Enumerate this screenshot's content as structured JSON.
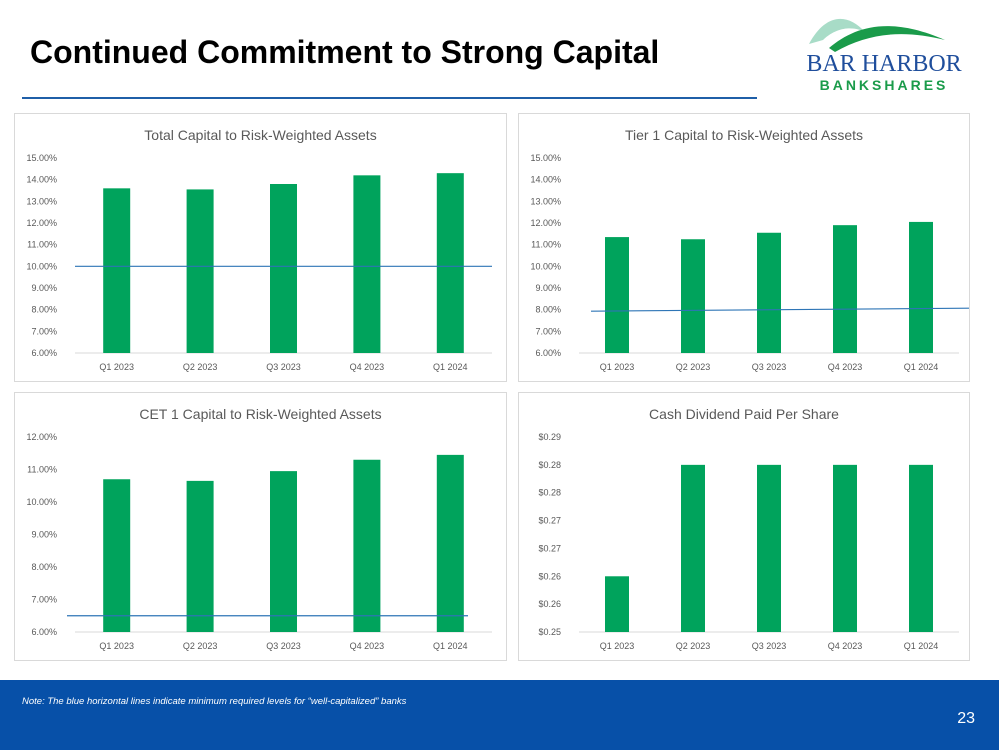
{
  "slide": {
    "title": "Continued Commitment to Strong Capital",
    "note": "Note:  The blue horizontal lines indicate minimum required levels for “well-capitalized” banks",
    "page_number": "23"
  },
  "logo": {
    "line1": "BAR HARBOR",
    "line2": "BANKSHARES",
    "colors": {
      "green": "#1a9b4a",
      "mint": "#a8dcc7",
      "navy": "#1f4e9c"
    }
  },
  "colors": {
    "bar": "#00a35c",
    "threshold": "#2e75b6",
    "grid": "#d9d9d9"
  },
  "chart_data": [
    {
      "type": "bar",
      "title": "Total Capital to Risk-Weighted Assets",
      "categories": [
        "Q1 2023",
        "Q2 2023",
        "Q3 2023",
        "Q4 2023",
        "Q1 2024"
      ],
      "values": [
        13.6,
        13.55,
        13.8,
        14.2,
        14.3
      ],
      "yticks": [
        "6.00%",
        "7.00%",
        "8.00%",
        "9.00%",
        "10.00%",
        "11.00%",
        "12.00%",
        "13.00%",
        "14.00%",
        "15.00%"
      ],
      "ylim": [
        6,
        15
      ],
      "threshold": 10.0,
      "unit": "%"
    },
    {
      "type": "bar",
      "title": "Tier 1 Capital to Risk-Weighted Assets",
      "categories": [
        "Q1 2023",
        "Q2 2023",
        "Q3 2023",
        "Q4 2023",
        "Q1 2024"
      ],
      "values": [
        11.35,
        11.25,
        11.55,
        11.9,
        12.05
      ],
      "yticks": [
        "6.00%",
        "7.00%",
        "8.00%",
        "9.00%",
        "10.00%",
        "11.00%",
        "12.00%",
        "13.00%",
        "14.00%",
        "15.00%"
      ],
      "ylim": [
        6,
        15
      ],
      "threshold": 8.0,
      "unit": "%"
    },
    {
      "type": "bar",
      "title": "CET 1 Capital to Risk-Weighted Assets",
      "categories": [
        "Q1 2023",
        "Q2 2023",
        "Q3 2023",
        "Q4 2023",
        "Q1 2024"
      ],
      "values": [
        10.7,
        10.65,
        10.95,
        11.3,
        11.45
      ],
      "yticks": [
        "6.00%",
        "7.00%",
        "8.00%",
        "9.00%",
        "10.00%",
        "11.00%",
        "12.00%"
      ],
      "ylim": [
        6,
        12
      ],
      "threshold": 6.5,
      "unit": "%"
    },
    {
      "type": "bar",
      "title": "Cash Dividend Paid Per Share",
      "categories": [
        "Q1 2023",
        "Q2 2023",
        "Q3 2023",
        "Q4 2023",
        "Q1 2024"
      ],
      "values": [
        0.26,
        0.28,
        0.28,
        0.28,
        0.28
      ],
      "yticks": [
        "$0.25",
        "$0.26",
        "$0.26",
        "$0.27",
        "$0.27",
        "$0.28",
        "$0.28",
        "$0.29"
      ],
      "ylim": [
        0.25,
        0.285
      ],
      "threshold": null,
      "unit": "$"
    }
  ]
}
